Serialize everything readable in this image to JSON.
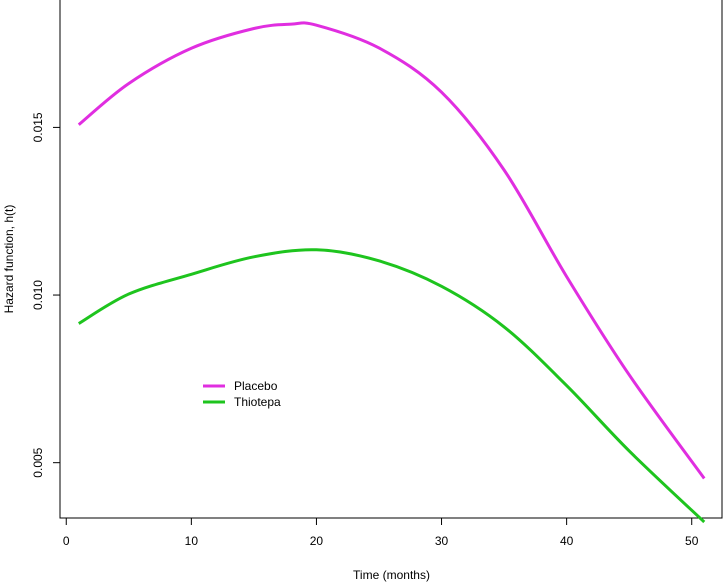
{
  "chart_data": {
    "type": "line",
    "xlabel": "Time (months)",
    "ylabel": "Hazard function, h(t)",
    "xlim": [
      -0.5,
      52.5
    ],
    "ylim": [
      0.00335,
      0.0188
    ],
    "x_ticks": [
      0,
      10,
      20,
      30,
      40,
      50
    ],
    "x_tick_labels": [
      "0",
      "10",
      "20",
      "30",
      "40",
      "50"
    ],
    "y_ticks": [
      0.005,
      0.01,
      0.015
    ],
    "y_tick_labels": [
      "0.005",
      "0.010",
      "0.015"
    ],
    "grid": false,
    "legend_position": "lower-left",
    "series": [
      {
        "name": "Placebo",
        "color": "#e02ee0",
        "x": [
          1,
          5,
          10,
          15,
          18,
          20,
          25,
          30,
          35,
          40,
          45,
          51
        ],
        "y": [
          0.01508,
          0.01631,
          0.01736,
          0.01795,
          0.01808,
          0.01805,
          0.01737,
          0.01605,
          0.01373,
          0.01055,
          0.00762,
          0.00453
        ]
      },
      {
        "name": "Thiotepa",
        "color": "#1ec41e",
        "x": [
          1,
          5,
          10,
          15,
          20,
          25,
          30,
          35,
          40,
          45,
          51
        ],
        "y": [
          0.00915,
          0.01003,
          0.01062,
          0.01114,
          0.01135,
          0.01102,
          0.01026,
          0.00905,
          0.0073,
          0.00535,
          0.00323
        ]
      }
    ]
  }
}
